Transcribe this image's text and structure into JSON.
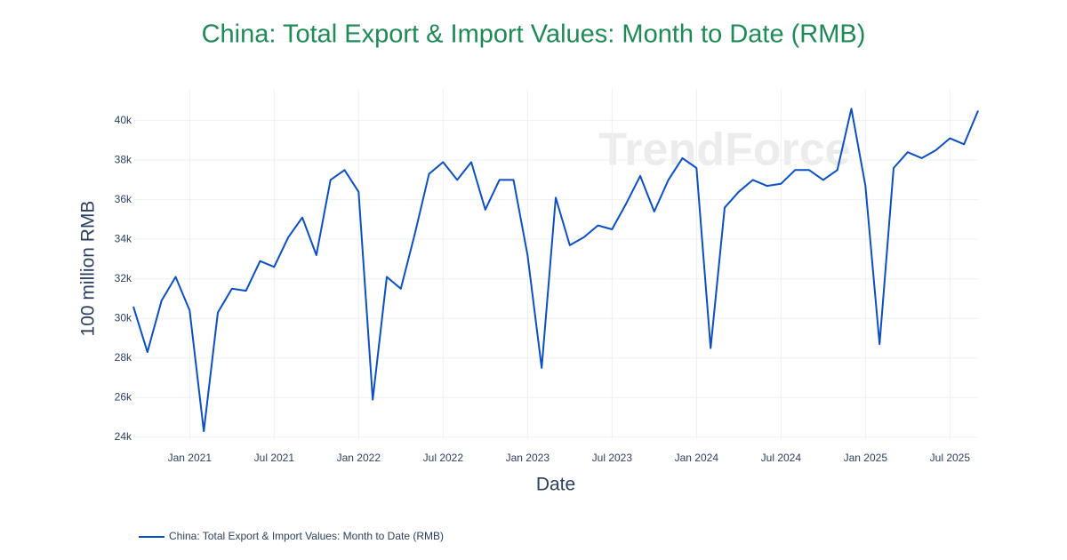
{
  "chart_data": {
    "type": "line",
    "title": "China: Total Export & Import Values: Month to Date (RMB)",
    "xlabel": "Date",
    "ylabel": "100 million RMB",
    "watermark": "TrendForce",
    "x": [
      "2020-09",
      "2020-10",
      "2020-11",
      "2020-12",
      "2021-01",
      "2021-02",
      "2021-03",
      "2021-04",
      "2021-05",
      "2021-06",
      "2021-07",
      "2021-08",
      "2021-09",
      "2021-10",
      "2021-11",
      "2021-12",
      "2022-01",
      "2022-02",
      "2022-03",
      "2022-04",
      "2022-05",
      "2022-06",
      "2022-07",
      "2022-08",
      "2022-09",
      "2022-10",
      "2022-11",
      "2022-12",
      "2023-01",
      "2023-02",
      "2023-03",
      "2023-04",
      "2023-05",
      "2023-06",
      "2023-07",
      "2023-08",
      "2023-09",
      "2023-10",
      "2023-11",
      "2023-12",
      "2024-01",
      "2024-02",
      "2024-03",
      "2024-04",
      "2024-05",
      "2024-06",
      "2024-07",
      "2024-08",
      "2024-09",
      "2024-10",
      "2024-11",
      "2024-12",
      "2025-01",
      "2025-02",
      "2025-03",
      "2025-04",
      "2025-05",
      "2025-06",
      "2025-07",
      "2025-08",
      "2025-09"
    ],
    "series": [
      {
        "name": "China: Total Export & Import Values: Month to Date (RMB)",
        "color": "#0b4fc8",
        "values": [
          30600,
          28300,
          30900,
          32100,
          30400,
          24300,
          30300,
          31500,
          31400,
          32900,
          32600,
          34100,
          35100,
          33200,
          37000,
          37500,
          36400,
          25900,
          32100,
          31500,
          34300,
          37300,
          37900,
          37000,
          37900,
          35500,
          37000,
          37000,
          33200,
          27500,
          36100,
          33700,
          34100,
          34700,
          34500,
          35800,
          37200,
          35400,
          37000,
          38100,
          37600,
          28500,
          35600,
          36400,
          37000,
          36700,
          36800,
          37500,
          37500,
          37000,
          37500,
          40600,
          36700,
          28700,
          37600,
          38400,
          38100,
          38500,
          39100,
          38800,
          40500
        ]
      }
    ],
    "xlim": [
      "2020-09",
      "2025-09"
    ],
    "xticks": [
      {
        "value": "2021-01",
        "label": "Jan 2021"
      },
      {
        "value": "2021-07",
        "label": "Jul 2021"
      },
      {
        "value": "2022-01",
        "label": "Jan 2022"
      },
      {
        "value": "2022-07",
        "label": "Jul 2022"
      },
      {
        "value": "2023-01",
        "label": "Jan 2023"
      },
      {
        "value": "2023-07",
        "label": "Jul 2023"
      },
      {
        "value": "2024-01",
        "label": "Jan 2024"
      },
      {
        "value": "2024-07",
        "label": "Jul 2024"
      },
      {
        "value": "2025-01",
        "label": "Jan 2025"
      },
      {
        "value": "2025-07",
        "label": "Jul 2025"
      }
    ],
    "ylim": [
      23900,
      41600
    ],
    "yticks": [
      {
        "value": 24000,
        "label": "24k"
      },
      {
        "value": 26000,
        "label": "26k"
      },
      {
        "value": 28000,
        "label": "28k"
      },
      {
        "value": 30000,
        "label": "30k"
      },
      {
        "value": 32000,
        "label": "32k"
      },
      {
        "value": 34000,
        "label": "34k"
      },
      {
        "value": 36000,
        "label": "36k"
      },
      {
        "value": 38000,
        "label": "38k"
      },
      {
        "value": 40000,
        "label": "40k"
      }
    ],
    "grid": true,
    "legend": "bottom-left"
  }
}
